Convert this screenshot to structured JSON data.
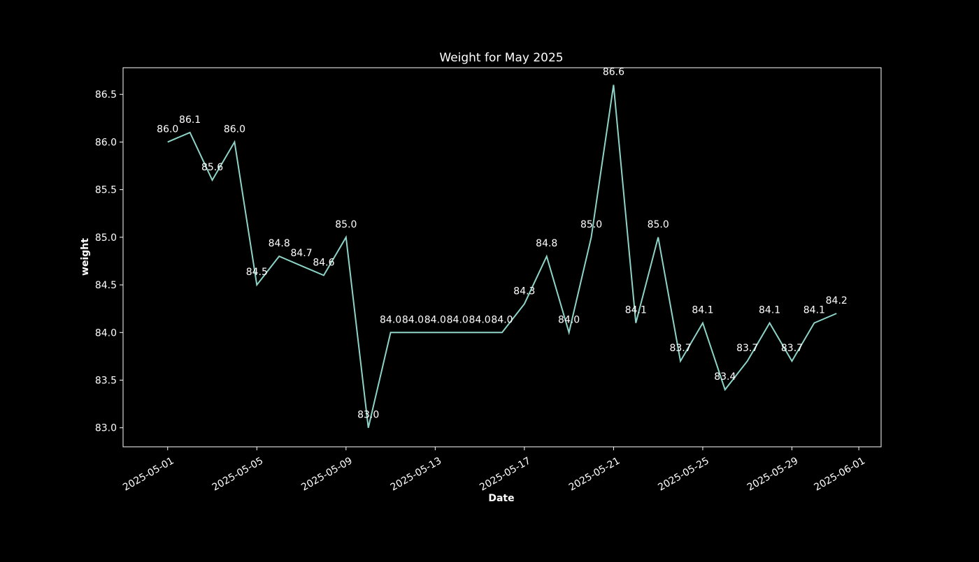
{
  "chart_data": {
    "type": "line",
    "title": "Weight for May 2025",
    "xlabel": "Date",
    "ylabel": "weight",
    "x_tick_labels": [
      "2025-05-01",
      "2025-05-05",
      "2025-05-09",
      "2025-05-13",
      "2025-05-17",
      "2025-05-21",
      "2025-05-25",
      "2025-05-29",
      "2025-06-01"
    ],
    "y_tick_labels": [
      "83.0",
      "83.5",
      "84.0",
      "84.5",
      "85.0",
      "85.5",
      "86.0",
      "86.5"
    ],
    "ylim": [
      82.8,
      86.78
    ],
    "xlim": [
      "2025-04-29",
      "2025-06-02"
    ],
    "grid": false,
    "colors": {
      "background": "#000000",
      "line": "#8dd3c7",
      "text": "#ffffff",
      "frame": "#ffffff"
    },
    "series": [
      {
        "x": [
          "2025-05-01",
          "2025-05-02",
          "2025-05-03",
          "2025-05-04",
          "2025-05-05",
          "2025-05-06",
          "2025-05-07",
          "2025-05-08",
          "2025-05-09",
          "2025-05-10",
          "2025-05-11",
          "2025-05-12",
          "2025-05-13",
          "2025-05-14",
          "2025-05-15",
          "2025-05-16",
          "2025-05-17",
          "2025-05-18",
          "2025-05-19",
          "2025-05-20",
          "2025-05-21",
          "2025-05-22",
          "2025-05-23",
          "2025-05-24",
          "2025-05-25",
          "2025-05-26",
          "2025-05-27",
          "2025-05-28",
          "2025-05-29",
          "2025-05-30",
          "2025-05-31"
        ],
        "values": [
          86.0,
          86.1,
          85.6,
          86.0,
          84.5,
          84.8,
          84.7,
          84.6,
          85.0,
          83.0,
          84.0,
          84.0,
          84.0,
          84.0,
          84.0,
          84.0,
          84.3,
          84.8,
          84.0,
          85.0,
          86.6,
          84.1,
          85.0,
          83.7,
          84.1,
          83.4,
          83.7,
          84.1,
          83.7,
          84.1,
          84.2
        ],
        "labels": [
          "86.0",
          "86.1",
          "85.6",
          "86.0",
          "84.5",
          "84.8",
          "84.7",
          "84.6",
          "85.0",
          "83.0",
          "84.0",
          "84.0",
          "84.0",
          "84.0",
          "84.0",
          "84.0",
          "84.3",
          "84.8",
          "84.0",
          "85.0",
          "86.6",
          "84.1",
          "85.0",
          "83.7",
          "84.1",
          "83.4",
          "83.7",
          "84.1",
          "83.7",
          "84.1",
          "84.2"
        ]
      }
    ]
  }
}
